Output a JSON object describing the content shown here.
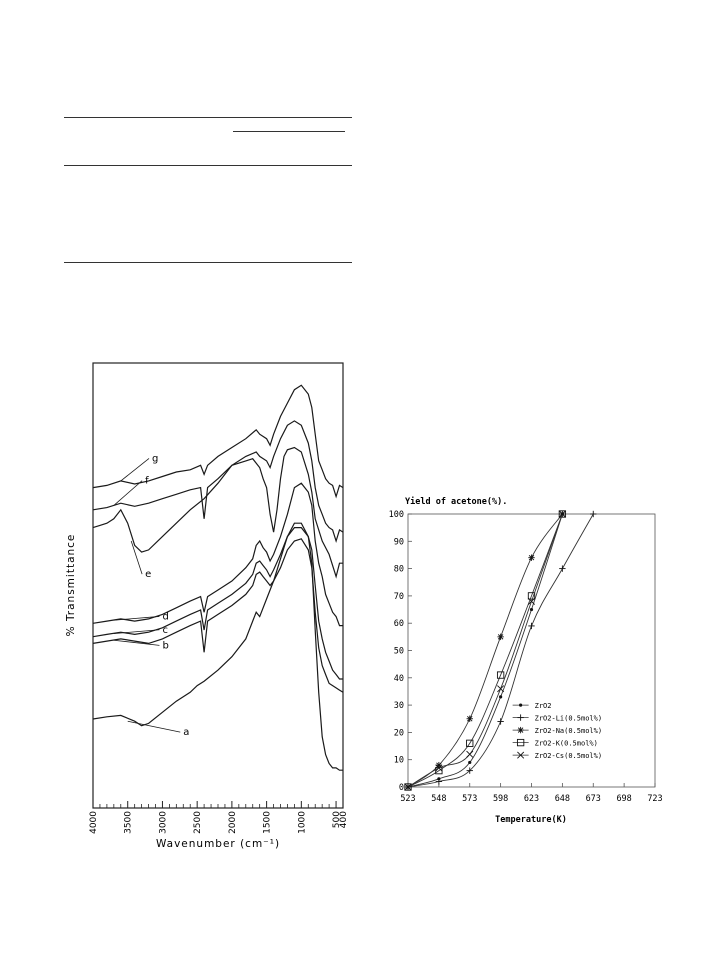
{
  "table_rules": {},
  "chart_data": [
    {
      "type": "line",
      "title": "",
      "xlabel": "Wavenumber (cm⁻¹)",
      "ylabel": "% Transmittance",
      "xlim": [
        4000,
        400
      ],
      "x_ticks": [
        "4000",
        "3500",
        "3000",
        "2500",
        "2000",
        "1500",
        "1000",
        "500",
        "400"
      ],
      "x_tick_values": [
        4000,
        3500,
        3000,
        2500,
        2000,
        1500,
        1000,
        500,
        400
      ],
      "series": [
        {
          "name": "g",
          "x": [
            4000,
            3800,
            3600,
            3400,
            3200,
            3000,
            2800,
            2600,
            2450,
            2400,
            2350,
            2200,
            2000,
            1800,
            1650,
            1600,
            1500,
            1450,
            1400,
            1300,
            1200,
            1100,
            1000,
            900,
            850,
            800,
            750,
            700,
            650,
            600,
            550,
            500,
            450,
            400
          ],
          "y": [
            72,
            72.5,
            73.5,
            72.8,
            73.5,
            74.5,
            75.5,
            76,
            77,
            75,
            77,
            79,
            81,
            83,
            85,
            84,
            83,
            81.5,
            84,
            88,
            91,
            94,
            95,
            93,
            90,
            84,
            78,
            76,
            74,
            73,
            72.5,
            70,
            72.5,
            72
          ]
        },
        {
          "name": "f",
          "x": [
            4000,
            3800,
            3600,
            3400,
            3200,
            3000,
            2800,
            2600,
            2450,
            2400,
            2350,
            2200,
            2000,
            1800,
            1650,
            1600,
            1500,
            1450,
            1400,
            1300,
            1200,
            1100,
            1000,
            900,
            850,
            800,
            750,
            700,
            650,
            600,
            550,
            500,
            450,
            400
          ],
          "y": [
            67,
            67.5,
            68.5,
            67.8,
            68.5,
            69.5,
            70.5,
            71.5,
            72,
            65,
            72,
            74,
            77,
            79,
            80,
            79,
            78,
            76.5,
            79,
            83,
            86,
            87,
            86,
            82,
            78,
            72,
            68,
            66,
            64,
            63,
            62.5,
            60,
            62.5,
            62
          ]
        },
        {
          "name": "e",
          "x": [
            4000,
            3900,
            3800,
            3700,
            3600,
            3500,
            3400,
            3300,
            3200,
            3000,
            2800,
            2600,
            2400,
            2200,
            2000,
            1800,
            1700,
            1600,
            1550,
            1500,
            1450,
            1400,
            1350,
            1300,
            1250,
            1200,
            1100,
            1000,
            900,
            850,
            800,
            700,
            600,
            500,
            450,
            400
          ],
          "y": [
            63,
            63.5,
            64,
            65,
            67,
            64,
            59,
            57.5,
            58,
            61,
            64,
            67,
            69.5,
            73,
            77,
            78,
            78.5,
            76.5,
            74,
            72,
            66,
            62,
            67,
            74,
            79,
            80.5,
            81,
            80,
            75,
            71,
            65,
            60,
            57,
            52,
            55,
            55
          ]
        },
        {
          "name": "d",
          "x": [
            4000,
            3800,
            3600,
            3400,
            3200,
            3000,
            2800,
            2600,
            2450,
            2400,
            2350,
            2200,
            2000,
            1800,
            1700,
            1650,
            1600,
            1550,
            1500,
            1450,
            1400,
            1300,
            1200,
            1100,
            1000,
            900,
            850,
            800,
            750,
            700,
            650,
            600,
            550,
            500,
            450,
            400
          ],
          "y": [
            41.5,
            42,
            42.5,
            42,
            42.5,
            43.5,
            45,
            46.5,
            47.5,
            44,
            47.5,
            49,
            51,
            54,
            56,
            59,
            60,
            58.5,
            57.5,
            55.5,
            57,
            61,
            66,
            72,
            73,
            71,
            68,
            60,
            55,
            52,
            48,
            46,
            44,
            43,
            41,
            41
          ]
        },
        {
          "name": "c",
          "x": [
            4000,
            3800,
            3600,
            3400,
            3200,
            3000,
            2800,
            2600,
            2450,
            2400,
            2350,
            2200,
            2000,
            1800,
            1700,
            1650,
            1600,
            1550,
            1500,
            1450,
            1400,
            1300,
            1200,
            1100,
            1000,
            900,
            850,
            800,
            750,
            700,
            650,
            600,
            550,
            500,
            450,
            400
          ],
          "y": [
            38.5,
            39,
            39.5,
            39,
            39.5,
            40.5,
            42,
            43.5,
            44.5,
            40,
            44.5,
            46,
            48,
            50.5,
            52.5,
            55,
            55.5,
            54.5,
            53.5,
            52,
            53.5,
            57,
            61,
            63,
            63,
            61,
            58,
            50,
            42,
            38,
            35,
            33,
            31,
            30,
            29,
            29
          ]
        },
        {
          "name": "b",
          "x": [
            4000,
            3800,
            3600,
            3400,
            3200,
            3000,
            2800,
            2600,
            2450,
            2400,
            2350,
            2200,
            2000,
            1800,
            1700,
            1650,
            1600,
            1550,
            1500,
            1450,
            1400,
            1300,
            1200,
            1100,
            1000,
            900,
            850,
            800,
            750,
            700,
            650,
            600,
            550,
            500,
            450,
            400
          ],
          "y": [
            37,
            37.5,
            38,
            37.5,
            37,
            38,
            39.5,
            41,
            42,
            35,
            42,
            43.5,
            45.5,
            48,
            50,
            52.5,
            53,
            52,
            51,
            50,
            51,
            54,
            58,
            60,
            60.5,
            58,
            54,
            44,
            36,
            32,
            30,
            28,
            27.5,
            27,
            26.5,
            26
          ]
        },
        {
          "name": "a",
          "x": [
            4000,
            3800,
            3600,
            3400,
            3300,
            3200,
            3000,
            2800,
            2600,
            2500,
            2400,
            2200,
            2000,
            1800,
            1700,
            1650,
            1600,
            1500,
            1400,
            1300,
            1200,
            1100,
            1000,
            900,
            850,
            800,
            750,
            700,
            650,
            600,
            550,
            500,
            450,
            400
          ],
          "y": [
            20,
            20.5,
            20.8,
            19.5,
            18.5,
            19,
            21.5,
            24,
            26,
            27.5,
            28.5,
            31,
            34,
            38,
            42,
            44,
            43,
            47,
            51,
            56,
            61,
            64,
            64,
            61,
            55,
            40,
            26,
            16,
            12,
            10,
            9,
            9,
            8.5,
            8.5
          ]
        }
      ],
      "ylim": [
        0,
        100
      ]
    },
    {
      "type": "line",
      "title": "Yield of acetone(%).",
      "xlabel": "Temperature(K)",
      "ylabel": "",
      "xlim": [
        523,
        723
      ],
      "ylim": [
        0,
        100
      ],
      "x_ticks": [
        523,
        548,
        573,
        598,
        623,
        648,
        673,
        698,
        723
      ],
      "y_ticks": [
        0,
        10,
        20,
        30,
        40,
        50,
        60,
        70,
        80,
        90,
        100
      ],
      "grid": false,
      "legend_position": "lower-right",
      "series": [
        {
          "name": "ZrO2",
          "marker": "dot",
          "x": [
            523,
            548,
            573,
            598,
            623,
            648
          ],
          "y": [
            0,
            3,
            9,
            33,
            65,
            100
          ]
        },
        {
          "name": "ZrO2-Li(0.5mol%)",
          "marker": "plus",
          "x": [
            523,
            548,
            573,
            598,
            623,
            648,
            673
          ],
          "y": [
            0,
            2,
            6,
            24,
            59,
            80,
            100
          ]
        },
        {
          "name": "ZrO2-Na(0.5mol%)",
          "marker": "asterisk",
          "x": [
            523,
            548,
            573,
            598,
            623,
            648
          ],
          "y": [
            0,
            8,
            25,
            55,
            84,
            100
          ]
        },
        {
          "name": "ZrO2-K(0.5mol%)",
          "marker": "square",
          "x": [
            523,
            548,
            573,
            598,
            623,
            648
          ],
          "y": [
            0,
            6,
            16,
            41,
            70,
            100
          ]
        },
        {
          "name": "ZrO2-Cs(0.5mol%)",
          "marker": "cross",
          "x": [
            523,
            548,
            573,
            598,
            623,
            648
          ],
          "y": [
            0,
            7,
            12,
            36,
            68,
            100
          ]
        }
      ]
    }
  ]
}
